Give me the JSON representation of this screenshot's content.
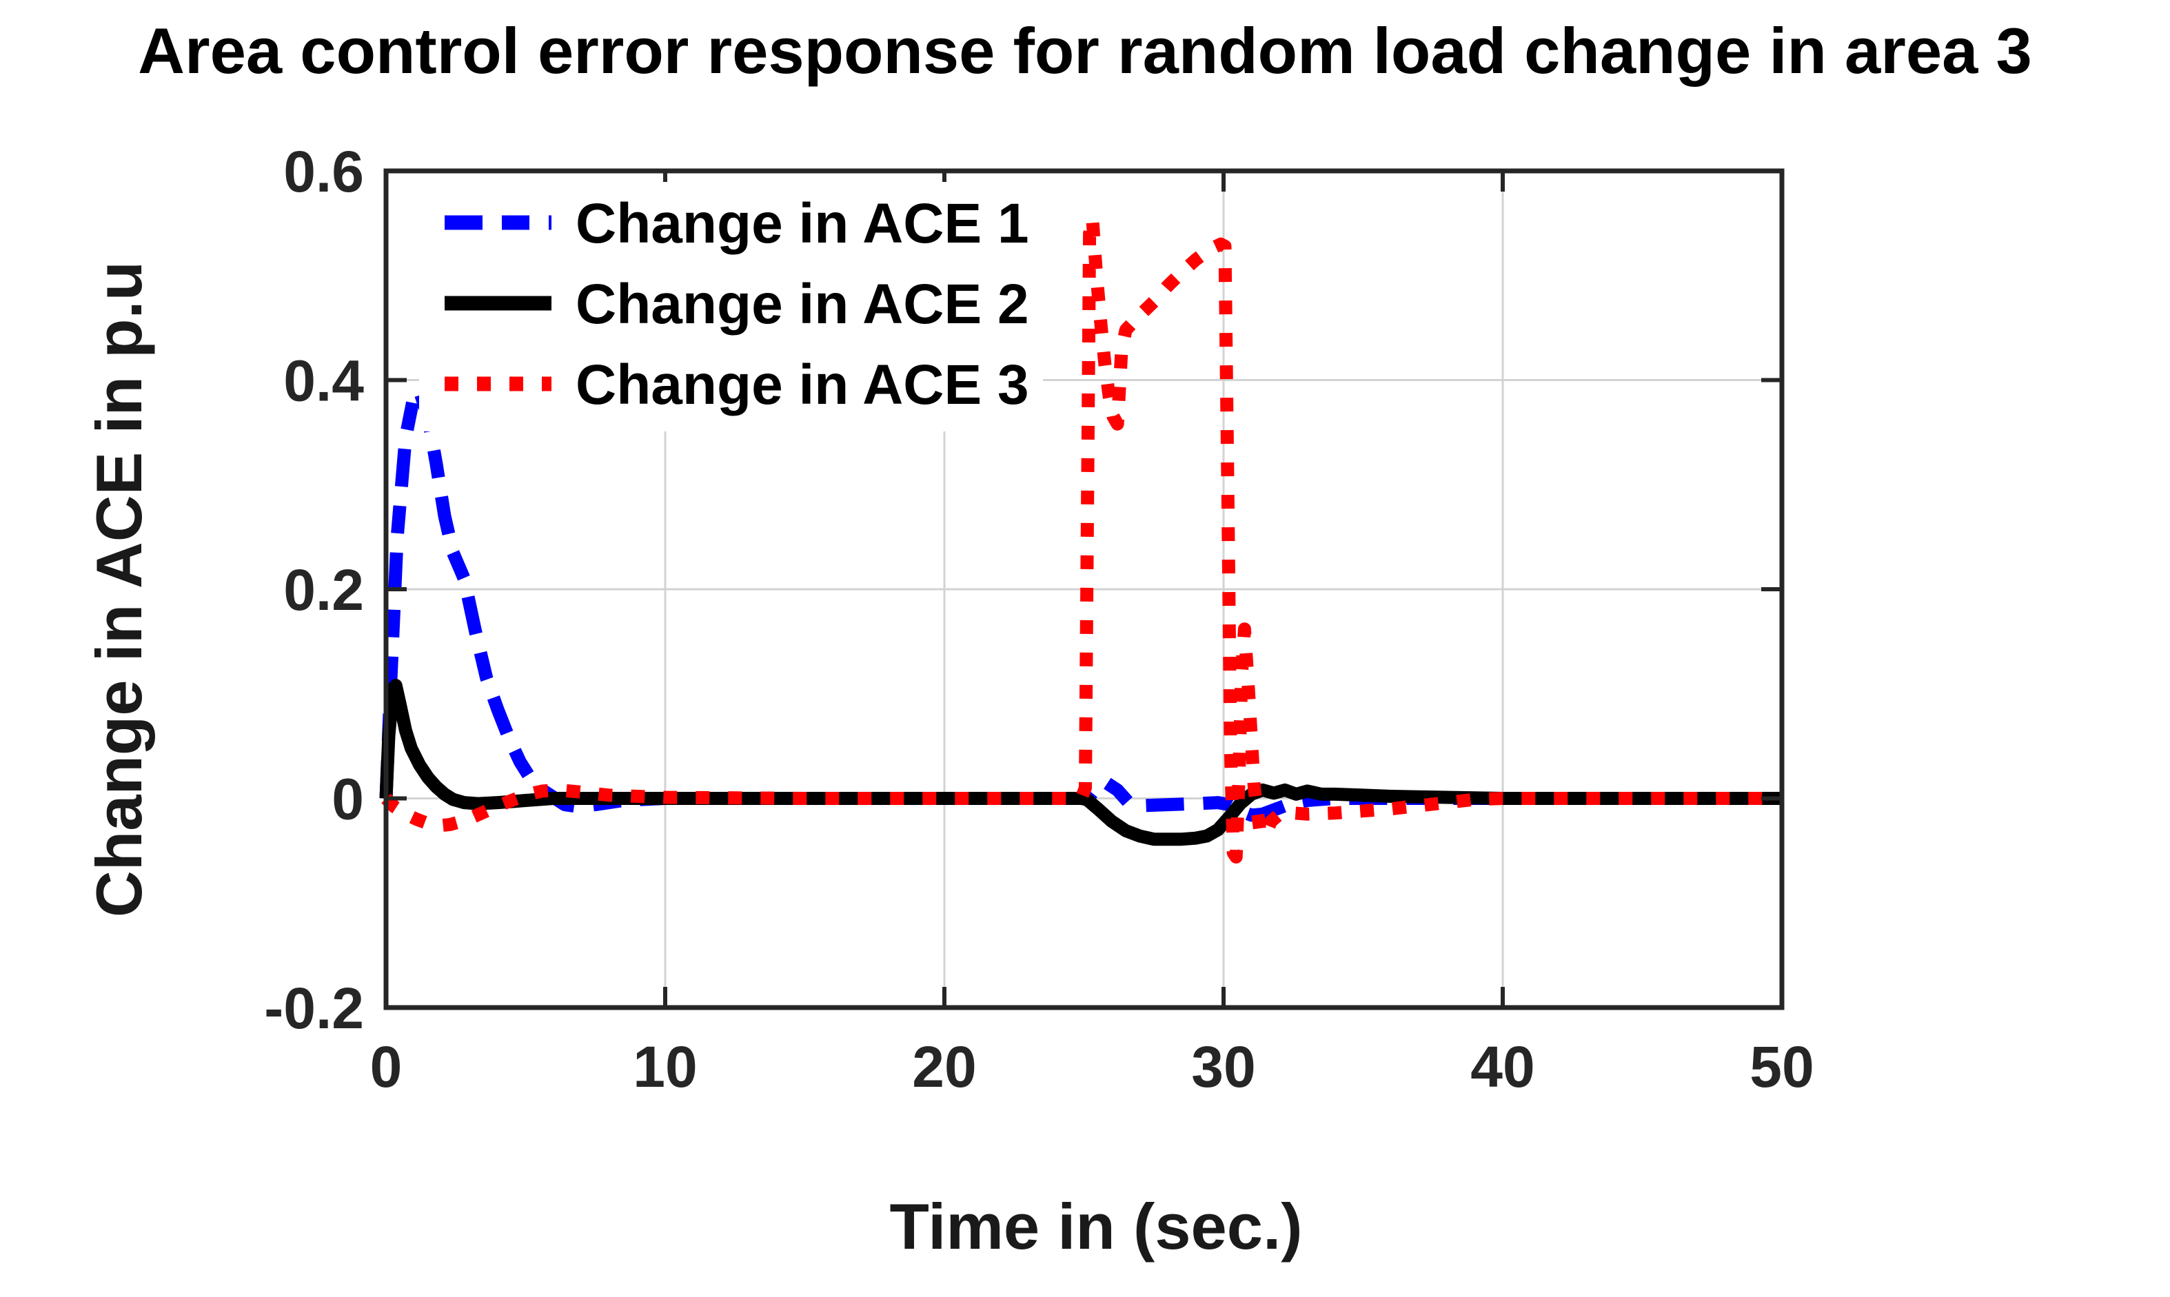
{
  "figure": {
    "background": "#ffffff",
    "axes_color": "#262626",
    "grid_color": "#d3d3d3"
  },
  "chart_data": {
    "type": "line",
    "title": "Area control error response for random load change in area 3",
    "xlabel": "Time in (sec.)",
    "ylabel": "Change in ACE in p.u",
    "xlim": [
      0,
      50
    ],
    "ylim": [
      -0.2,
      0.6
    ],
    "xticks": [
      0,
      10,
      20,
      30,
      40,
      50
    ],
    "xtick_labels": [
      "0",
      "10",
      "20",
      "30",
      "40",
      "50"
    ],
    "yticks": [
      -0.2,
      0,
      0.2,
      0.4,
      0.6
    ],
    "ytick_labels": [
      "-0.2",
      "0",
      "0.2",
      "0.4",
      "0.6"
    ],
    "grid": true,
    "legend_position": "upper-left-inside",
    "series": [
      {
        "name": "Change in ACE 1",
        "color": "#0000ff",
        "style": "dashed",
        "x": [
          0,
          0.15,
          0.4,
          0.7,
          1.0,
          1.2,
          1.5,
          1.8,
          2.1,
          2.4,
          2.8,
          3.2,
          3.6,
          4.0,
          4.4,
          4.8,
          5.2,
          5.6,
          6.0,
          6.4,
          6.9,
          7.5,
          8.5,
          10,
          14,
          20,
          24.9,
          25.2,
          25.5,
          25.8,
          26.2,
          26.6,
          27,
          28,
          29,
          29.8,
          30.2,
          30.6,
          31,
          31.4,
          31.9,
          32.4,
          33,
          34,
          36,
          40,
          50
        ],
        "y": [
          0,
          0.1,
          0.25,
          0.345,
          0.385,
          0.39,
          0.365,
          0.32,
          0.27,
          0.235,
          0.21,
          0.16,
          0.115,
          0.085,
          0.058,
          0.035,
          0.018,
          0.008,
          0.001,
          -0.006,
          -0.008,
          -0.006,
          -0.002,
          0,
          0,
          0,
          0,
          0.002,
          0.012,
          0.015,
          0.008,
          -0.004,
          -0.007,
          -0.006,
          -0.005,
          -0.004,
          -0.006,
          -0.012,
          -0.016,
          -0.015,
          -0.01,
          -0.005,
          -0.002,
          0,
          0,
          0,
          0
        ]
      },
      {
        "name": "Change in ACE 2",
        "color": "#000000",
        "style": "solid",
        "x": [
          0,
          0.1,
          0.25,
          0.35,
          0.5,
          0.7,
          0.9,
          1.2,
          1.5,
          1.8,
          2.1,
          2.4,
          2.8,
          3.3,
          4.0,
          4.5,
          5.0,
          6,
          8,
          12,
          18,
          24.9,
          25.1,
          25.5,
          26,
          26.5,
          27,
          27.5,
          28,
          28.5,
          29,
          29.4,
          29.8,
          30.2,
          30.6,
          31,
          31.4,
          31.8,
          32.2,
          32.6,
          33,
          33.5,
          34,
          35,
          36,
          38,
          40,
          50
        ],
        "y": [
          0,
          0.06,
          0.105,
          0.108,
          0.09,
          0.065,
          0.048,
          0.032,
          0.02,
          0.011,
          0.004,
          -0.001,
          -0.004,
          -0.005,
          -0.004,
          -0.003,
          -0.002,
          0,
          0,
          0,
          0,
          0,
          -0.001,
          -0.01,
          -0.022,
          -0.031,
          -0.036,
          -0.039,
          -0.039,
          -0.039,
          -0.038,
          -0.036,
          -0.03,
          -0.018,
          -0.005,
          0.004,
          0.008,
          0.005,
          0.008,
          0.004,
          0.007,
          0.004,
          0.004,
          0.003,
          0.002,
          0.001,
          0,
          0
        ]
      },
      {
        "name": "Change in ACE 3",
        "color": "#ff0000",
        "style": "dotted",
        "x": [
          0,
          0.3,
          0.7,
          1.1,
          1.5,
          1.9,
          2.3,
          2.7,
          3.1,
          3.6,
          4.1,
          4.6,
          5.1,
          5.6,
          6.2,
          7,
          8,
          10,
          15,
          20,
          24.9,
          25.05,
          25.2,
          25.3,
          25.45,
          25.6,
          25.75,
          25.9,
          26.05,
          26.2,
          26.35,
          26.5,
          27,
          27.5,
          28,
          28.5,
          29,
          29.5,
          29.9,
          30.05,
          30.15,
          30.25,
          30.35,
          30.45,
          30.55,
          30.65,
          30.75,
          30.9,
          31.1,
          31.3,
          31.5,
          31.7,
          32,
          32.5,
          33,
          34,
          35,
          36,
          37,
          38,
          39,
          40,
          50
        ],
        "y": [
          0,
          -0.008,
          -0.015,
          -0.02,
          -0.024,
          -0.026,
          -0.025,
          -0.022,
          -0.018,
          -0.012,
          -0.006,
          -0.001,
          0.004,
          0.007,
          0.008,
          0.006,
          0.003,
          0.001,
          0,
          0,
          0,
          0.01,
          0.54,
          0.555,
          0.5,
          0.455,
          0.415,
          0.385,
          0.365,
          0.358,
          0.43,
          0.448,
          0.462,
          0.475,
          0.49,
          0.503,
          0.515,
          0.525,
          0.53,
          0.528,
          0.3,
          0.05,
          -0.052,
          -0.056,
          0.02,
          0.12,
          0.162,
          0.1,
          0.01,
          -0.03,
          -0.035,
          -0.022,
          -0.015,
          -0.014,
          -0.015,
          -0.014,
          -0.012,
          -0.01,
          -0.007,
          -0.004,
          -0.001,
          0,
          0
        ]
      }
    ]
  }
}
